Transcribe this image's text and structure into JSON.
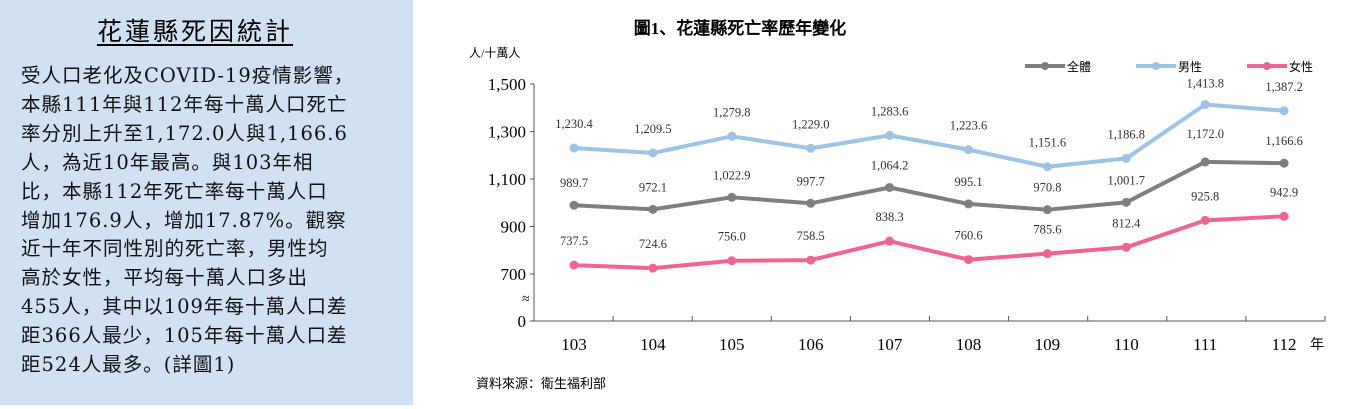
{
  "panel": {
    "title": "花蓮縣死因統計",
    "lines": [
      "受人口老化及COVID-19疫情影響，",
      "本縣111年與112年每十萬人口死亡",
      "率分別上升至1,172.0人與1,166.6",
      "人，為近10年最高。與103年相",
      "比，本縣112年死亡率每十萬人口",
      "增加176.9人，增加17.87%。觀察",
      "近十年不同性別的死亡率，男性均",
      "高於女性，平均每十萬人口多出",
      "455人，其中以109年每十萬人口差",
      "距366人最少，105年每十萬人口差",
      "距524人最多。(詳圖1)"
    ]
  },
  "chart_data": {
    "type": "line",
    "title": "圖1、花蓮縣死亡率歷年變化",
    "ylabel": "人/十萬人",
    "xlabel": "年",
    "categories": [
      "103",
      "104",
      "105",
      "106",
      "107",
      "108",
      "109",
      "110",
      "111",
      "112"
    ],
    "yticks": [
      "1,500",
      "1,300",
      "1,100",
      "900",
      "700",
      "0"
    ],
    "axis_break": "0-700",
    "ylim": [
      700,
      1500
    ],
    "legend_position": "top-right",
    "grid": false,
    "source": "資料來源：衛生福利部",
    "series": [
      {
        "name": "全體",
        "color": "#7f7f7f",
        "values": [
          989.7,
          972.1,
          1022.9,
          997.7,
          1064.2,
          995.1,
          970.8,
          1001.7,
          1172.0,
          1166.6
        ],
        "labels": [
          "989.7",
          "972.1",
          "1,022.9",
          "997.7",
          "1,064.2",
          "995.1",
          "970.8",
          "1,001.7",
          "1,172.0",
          "1,166.6"
        ]
      },
      {
        "name": "男性",
        "color": "#9dc3e6",
        "values": [
          1230.4,
          1209.5,
          1279.8,
          1229.0,
          1283.6,
          1223.6,
          1151.6,
          1186.8,
          1413.8,
          1387.2
        ],
        "labels": [
          "1,230.4",
          "1,209.5",
          "1,279.8",
          "1,229.0",
          "1,283.6",
          "1,223.6",
          "1,151.6",
          "1,186.8",
          "1,413.8",
          "1,387.2"
        ]
      },
      {
        "name": "女性",
        "color": "#f06493",
        "values": [
          737.5,
          724.6,
          756.0,
          758.5,
          838.3,
          760.6,
          785.6,
          812.4,
          925.8,
          942.9
        ],
        "labels": [
          "737.5",
          "724.6",
          "756.0",
          "758.5",
          "838.3",
          "760.6",
          "785.6",
          "812.4",
          "925.8",
          "942.9"
        ]
      }
    ]
  }
}
